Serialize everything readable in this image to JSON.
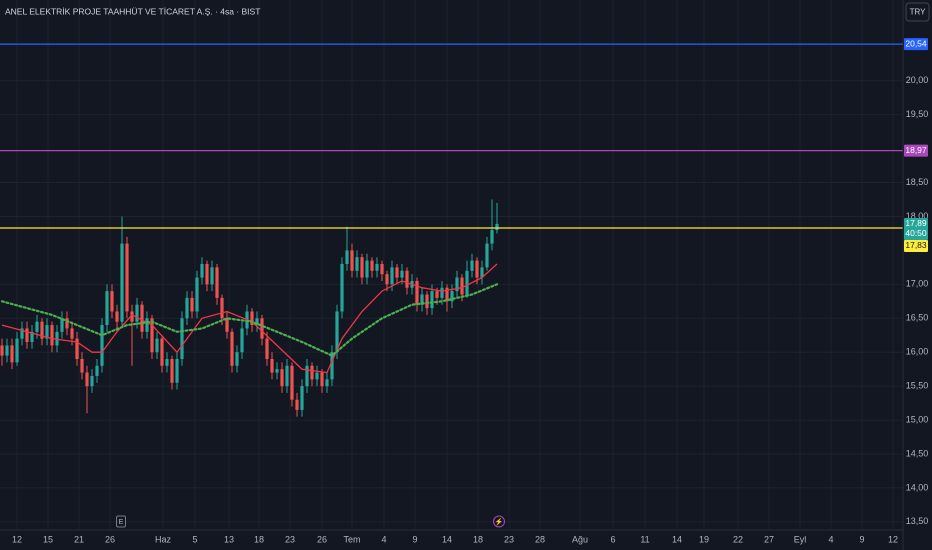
{
  "chart_data": {
    "type": "candlestick",
    "title": "ANEL ELEKTRİK PROJE TAAHHÜT VE TİCARET A.Ş. · 4sa · BIST",
    "currency_button": "TRY",
    "up_color": "#26a69a",
    "down_color": "#ef5350",
    "grid": true,
    "xlim": [
      -0.4,
      180.2
    ],
    "ylim": [
      13.38,
      21.19
    ],
    "yticks": [
      {
        "value": 13.5,
        "label": "13,50"
      },
      {
        "value": 14,
        "label": "14,00"
      },
      {
        "value": 14.5,
        "label": "14,50"
      },
      {
        "value": 15,
        "label": "15,00"
      },
      {
        "value": 15.5,
        "label": "15,50"
      },
      {
        "value": 16,
        "label": "16,00"
      },
      {
        "value": 16.5,
        "label": "16,50"
      },
      {
        "value": 17,
        "label": "17,00"
      },
      {
        "value": 18,
        "label": "18,00"
      },
      {
        "value": 18.5,
        "label": "18,50"
      },
      {
        "value": 19.5,
        "label": "19,50"
      },
      {
        "value": 20,
        "label": "20,00"
      }
    ],
    "xticks": [
      {
        "value": 3.0,
        "label": "12"
      },
      {
        "value": 9.2,
        "label": "15"
      },
      {
        "value": 15.4,
        "label": "21"
      },
      {
        "value": 21.6,
        "label": "26"
      },
      {
        "value": 32.2,
        "label": "Haz"
      },
      {
        "value": 38.6,
        "label": "5"
      },
      {
        "value": 45.4,
        "label": "13"
      },
      {
        "value": 51.4,
        "label": "18"
      },
      {
        "value": 57.6,
        "label": "23"
      },
      {
        "value": 64.0,
        "label": "26"
      },
      {
        "value": 70.0,
        "label": "Tem"
      },
      {
        "value": 76.4,
        "label": "4"
      },
      {
        "value": 82.6,
        "label": "9"
      },
      {
        "value": 89.0,
        "label": "14"
      },
      {
        "value": 95.2,
        "label": "18"
      },
      {
        "value": 101.4,
        "label": "23"
      },
      {
        "value": 107.6,
        "label": "28"
      },
      {
        "value": 115.6,
        "label": "Ağu"
      },
      {
        "value": 122.2,
        "label": "6"
      },
      {
        "value": 128.6,
        "label": "11"
      },
      {
        "value": 135.0,
        "label": "14"
      },
      {
        "value": 140.4,
        "label": "19"
      },
      {
        "value": 147.2,
        "label": "22"
      },
      {
        "value": 153.4,
        "label": "27"
      },
      {
        "value": 159.6,
        "label": "Eyl"
      },
      {
        "value": 165.8,
        "label": "4"
      },
      {
        "value": 172.0,
        "label": "9"
      },
      {
        "value": 178.2,
        "label": "12"
      }
    ],
    "open": [
      16.1,
      15.95,
      16.1,
      15.85,
      16.2,
      16.35,
      16.15,
      16.3,
      16.45,
      16.2,
      16.4,
      16.1,
      16.3,
      16.5,
      16.35,
      16.2,
      15.9,
      15.7,
      15.5,
      15.65,
      15.8,
      16.4,
      16.9,
      16.6,
      16.45,
      17.6,
      16.6,
      16.45,
      16.7,
      16.3,
      16.5,
      16.0,
      16.2,
      15.8,
      15.9,
      15.55,
      15.9,
      16.5,
      16.8,
      16.6,
      17.1,
      17.3,
      17.0,
      17.25,
      16.8,
      16.5,
      16.3,
      15.8,
      16.0,
      16.35,
      16.6,
      16.4,
      16.5,
      16.2,
      15.9,
      15.7,
      15.75,
      15.5,
      15.8,
      15.3,
      15.15,
      15.5,
      15.8,
      15.6,
      15.7,
      15.5,
      15.6,
      16.0,
      16.6,
      17.3,
      17.5,
      17.2,
      17.4,
      17.1,
      17.35,
      17.2,
      17.3,
      17.15,
      17.0,
      17.25,
      17.1,
      17.2,
      16.95,
      17.05,
      16.7,
      16.85,
      16.65,
      16.9,
      16.8,
      16.95,
      16.75,
      16.9,
      17.1,
      16.85,
      17.2,
      17.35,
      17.1,
      17.25,
      17.6,
      17.8
    ],
    "high": [
      16.2,
      16.2,
      16.2,
      16.3,
      16.45,
      16.45,
      16.4,
      16.55,
      16.5,
      16.5,
      16.45,
      16.4,
      16.6,
      16.6,
      16.45,
      16.3,
      16.0,
      15.8,
      15.75,
      15.9,
      16.5,
      17.0,
      17.0,
      16.7,
      18.0,
      17.7,
      16.7,
      16.8,
      16.75,
      16.6,
      16.55,
      16.3,
      16.25,
      16.0,
      15.95,
      16.0,
      16.6,
      16.9,
      16.9,
      17.2,
      17.4,
      17.35,
      17.35,
      17.3,
      16.85,
      16.6,
      16.35,
      16.1,
      16.45,
      16.7,
      16.65,
      16.6,
      16.55,
      16.3,
      16.0,
      15.85,
      15.85,
      15.9,
      15.85,
      15.4,
      15.6,
      15.9,
      15.85,
      15.8,
      15.75,
      15.7,
      16.1,
      16.7,
      17.4,
      17.85,
      17.6,
      17.5,
      17.45,
      17.45,
      17.4,
      17.4,
      17.35,
      17.2,
      17.35,
      17.3,
      17.3,
      17.25,
      17.15,
      17.1,
      16.95,
      16.9,
      17.0,
      16.95,
      17.05,
      17.0,
      17.0,
      17.2,
      17.15,
      17.35,
      17.45,
      17.4,
      17.35,
      17.7,
      18.25,
      18.2
    ],
    "low": [
      15.8,
      15.85,
      15.75,
      15.8,
      16.1,
      16.05,
      16.05,
      16.2,
      16.1,
      16.1,
      16.0,
      16.0,
      16.2,
      16.25,
      16.1,
      15.8,
      15.6,
      15.1,
      15.4,
      15.55,
      15.7,
      16.3,
      16.5,
      16.3,
      16.4,
      16.5,
      15.8,
      16.35,
      16.2,
      16.2,
      15.9,
      15.9,
      15.7,
      15.7,
      15.45,
      15.45,
      15.8,
      16.4,
      16.5,
      16.5,
      17.0,
      16.9,
      16.9,
      16.7,
      16.4,
      16.2,
      15.7,
      15.7,
      15.9,
      16.25,
      16.3,
      16.3,
      16.1,
      15.8,
      15.6,
      15.6,
      15.4,
      15.4,
      15.2,
      15.05,
      15.05,
      15.4,
      15.5,
      15.5,
      15.4,
      15.4,
      15.5,
      15.9,
      16.5,
      17.2,
      17.1,
      17.1,
      17.0,
      17.0,
      17.1,
      17.1,
      17.05,
      16.9,
      16.9,
      17.0,
      17.0,
      16.85,
      16.85,
      16.6,
      16.6,
      16.55,
      16.55,
      16.7,
      16.7,
      16.6,
      16.65,
      16.8,
      16.75,
      16.8,
      17.1,
      17.0,
      17.0,
      17.2,
      17.5,
      17.75
    ],
    "close": [
      15.95,
      16.1,
      15.85,
      16.2,
      16.35,
      16.15,
      16.3,
      16.45,
      16.2,
      16.4,
      16.1,
      16.3,
      16.5,
      16.35,
      16.2,
      15.9,
      15.7,
      15.5,
      15.65,
      15.8,
      16.4,
      16.9,
      16.6,
      16.45,
      17.6,
      16.6,
      16.45,
      16.7,
      16.3,
      16.5,
      16.0,
      16.2,
      15.8,
      15.9,
      15.55,
      15.9,
      16.5,
      16.8,
      16.6,
      17.1,
      17.3,
      17.0,
      17.25,
      16.8,
      16.5,
      16.3,
      15.8,
      16.0,
      16.35,
      16.6,
      16.4,
      16.5,
      16.2,
      15.9,
      15.7,
      15.75,
      15.5,
      15.8,
      15.3,
      15.15,
      15.5,
      15.8,
      15.6,
      15.7,
      15.5,
      15.6,
      16.0,
      16.6,
      17.3,
      17.5,
      17.2,
      17.4,
      17.1,
      17.35,
      17.2,
      17.3,
      17.15,
      17.0,
      17.25,
      17.1,
      17.2,
      16.95,
      17.05,
      16.7,
      16.85,
      16.65,
      16.9,
      16.8,
      16.95,
      16.75,
      16.9,
      17.1,
      16.85,
      17.2,
      17.35,
      17.1,
      17.25,
      17.6,
      17.8,
      17.89
    ],
    "series": [
      {
        "color": "#f23645",
        "style": "solid",
        "x": [
          0,
          5,
          10,
          15,
          18,
          20,
          23,
          26,
          30,
          35,
          40,
          45,
          50,
          55,
          60,
          65,
          68,
          72,
          76,
          80,
          84,
          88,
          92,
          96,
          99
        ],
        "values": [
          16.4,
          16.3,
          16.2,
          16.15,
          16.0,
          16.0,
          16.3,
          16.55,
          16.4,
          16.0,
          16.5,
          16.6,
          16.45,
          16.1,
          15.75,
          15.7,
          16.2,
          16.6,
          16.9,
          17.05,
          16.95,
          16.9,
          16.95,
          17.1,
          17.3
        ]
      },
      {
        "color": "#4caf50",
        "style": "dotted",
        "x": [
          0,
          10,
          20,
          25,
          30,
          35,
          40,
          45,
          50,
          55,
          60,
          66,
          70,
          76,
          82,
          88,
          94,
          99
        ],
        "values": [
          16.75,
          16.55,
          16.25,
          16.4,
          16.45,
          16.3,
          16.35,
          16.5,
          16.45,
          16.3,
          16.15,
          15.95,
          16.2,
          16.5,
          16.7,
          16.75,
          16.85,
          17.0
        ]
      }
    ],
    "hlines": [
      {
        "color": "#2962ff",
        "value": {
          "value": 20.54,
          "label": "20,54"
        }
      },
      {
        "color": "#ab47bc",
        "value": {
          "value": 18.97,
          "label": "18,97"
        }
      },
      {
        "color": "#ffeb3b",
        "value": {
          "value": 17.83,
          "label": "17,83"
        }
      }
    ],
    "last_price": {
      "value": 17.89,
      "label": "17,89"
    },
    "countdown": "40:50",
    "event_markers": [
      {
        "x": 23.8,
        "label": "E"
      },
      {
        "x": 99.4,
        "label": "⚡"
      }
    ]
  }
}
